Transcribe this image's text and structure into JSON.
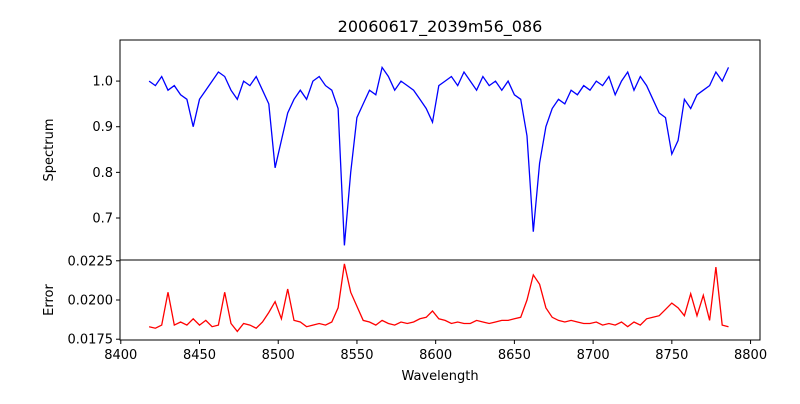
{
  "chart_data": [
    {
      "type": "line",
      "title": "20060617_2039m56_086",
      "xlabel": "",
      "ylabel": "Spectrum",
      "xlim": [
        8399.5,
        8806
      ],
      "ylim": [
        0.608,
        1.09
      ],
      "yticks": [
        0.7,
        0.8,
        0.9,
        1.0
      ],
      "ytick_labels": [
        "0.7",
        "0.8",
        "0.9",
        "1.0"
      ],
      "grid": false,
      "color": "#0000ff",
      "x": [
        8418,
        8422,
        8426,
        8430,
        8434,
        8438,
        8442,
        8446,
        8450,
        8454,
        8458,
        8462,
        8466,
        8470,
        8474,
        8478,
        8482,
        8486,
        8490,
        8494,
        8498,
        8502,
        8506,
        8510,
        8514,
        8518,
        8522,
        8526,
        8530,
        8534,
        8538,
        8542,
        8546,
        8550,
        8554,
        8558,
        8562,
        8566,
        8570,
        8574,
        8578,
        8582,
        8586,
        8590,
        8594,
        8598,
        8602,
        8606,
        8610,
        8614,
        8618,
        8622,
        8626,
        8630,
        8634,
        8638,
        8642,
        8646,
        8650,
        8654,
        8658,
        8662,
        8666,
        8670,
        8674,
        8678,
        8682,
        8686,
        8690,
        8694,
        8698,
        8702,
        8706,
        8710,
        8714,
        8718,
        8722,
        8726,
        8730,
        8734,
        8738,
        8742,
        8746,
        8750,
        8754,
        8758,
        8762,
        8766,
        8770,
        8774,
        8778,
        8782,
        8786
      ],
      "y": [
        1.0,
        0.99,
        1.01,
        0.98,
        0.99,
        0.97,
        0.96,
        0.9,
        0.96,
        0.98,
        1.0,
        1.02,
        1.01,
        0.98,
        0.96,
        1.0,
        0.99,
        1.01,
        0.98,
        0.95,
        0.81,
        0.87,
        0.93,
        0.96,
        0.98,
        0.96,
        1.0,
        1.01,
        0.99,
        0.98,
        0.94,
        0.64,
        0.8,
        0.92,
        0.95,
        0.98,
        0.97,
        1.03,
        1.01,
        0.98,
        1.0,
        0.99,
        0.98,
        0.96,
        0.94,
        0.91,
        0.99,
        1.0,
        1.01,
        0.99,
        1.02,
        1.0,
        0.98,
        1.01,
        0.99,
        1.0,
        0.98,
        1.0,
        0.97,
        0.96,
        0.88,
        0.67,
        0.82,
        0.9,
        0.94,
        0.96,
        0.95,
        0.98,
        0.97,
        0.99,
        0.98,
        1.0,
        0.99,
        1.01,
        0.97,
        1.0,
        1.02,
        0.98,
        1.01,
        0.99,
        0.96,
        0.93,
        0.92,
        0.84,
        0.87,
        0.96,
        0.94,
        0.97,
        0.98,
        0.99,
        1.02,
        1.0,
        1.03
      ]
    },
    {
      "type": "line",
      "title": "",
      "xlabel": "Wavelength",
      "ylabel": "Error",
      "xlim": [
        8399.5,
        8806
      ],
      "ylim": [
        0.01745,
        0.02255
      ],
      "xticks": [
        8400,
        8450,
        8500,
        8550,
        8600,
        8650,
        8700,
        8750,
        8800
      ],
      "xtick_labels": [
        "8400",
        "8450",
        "8500",
        "8550",
        "8600",
        "8650",
        "8700",
        "8750",
        "8800"
      ],
      "yticks": [
        0.0175,
        0.02,
        0.0225
      ],
      "ytick_labels": [
        "0.0175",
        "0.0200",
        "0.0225"
      ],
      "grid": false,
      "color": "#ff0000",
      "x": [
        8418,
        8422,
        8426,
        8430,
        8434,
        8438,
        8442,
        8446,
        8450,
        8454,
        8458,
        8462,
        8466,
        8470,
        8474,
        8478,
        8482,
        8486,
        8490,
        8494,
        8498,
        8502,
        8506,
        8510,
        8514,
        8518,
        8522,
        8526,
        8530,
        8534,
        8538,
        8542,
        8546,
        8550,
        8554,
        8558,
        8562,
        8566,
        8570,
        8574,
        8578,
        8582,
        8586,
        8590,
        8594,
        8598,
        8602,
        8606,
        8610,
        8614,
        8618,
        8622,
        8626,
        8630,
        8634,
        8638,
        8642,
        8646,
        8650,
        8654,
        8658,
        8662,
        8666,
        8670,
        8674,
        8678,
        8682,
        8686,
        8690,
        8694,
        8698,
        8702,
        8706,
        8710,
        8714,
        8718,
        8722,
        8726,
        8730,
        8734,
        8738,
        8742,
        8746,
        8750,
        8754,
        8758,
        8762,
        8766,
        8770,
        8774,
        8778,
        8782,
        8786
      ],
      "y": [
        0.0183,
        0.0182,
        0.0184,
        0.0205,
        0.0184,
        0.0186,
        0.0184,
        0.0188,
        0.0184,
        0.0187,
        0.0183,
        0.0184,
        0.0205,
        0.0185,
        0.018,
        0.0185,
        0.0184,
        0.0182,
        0.0186,
        0.0192,
        0.0199,
        0.0188,
        0.0207,
        0.0187,
        0.0186,
        0.0183,
        0.0184,
        0.0185,
        0.0184,
        0.0186,
        0.0195,
        0.0223,
        0.0205,
        0.0196,
        0.0187,
        0.0186,
        0.0184,
        0.0187,
        0.0185,
        0.0184,
        0.0186,
        0.0185,
        0.0186,
        0.0188,
        0.0189,
        0.0193,
        0.0188,
        0.0187,
        0.0185,
        0.0186,
        0.0185,
        0.0185,
        0.0187,
        0.0186,
        0.0185,
        0.0186,
        0.0187,
        0.0187,
        0.0188,
        0.0189,
        0.02,
        0.0216,
        0.021,
        0.0195,
        0.0189,
        0.0187,
        0.0186,
        0.0187,
        0.0186,
        0.0185,
        0.0185,
        0.0186,
        0.0184,
        0.0185,
        0.0184,
        0.0186,
        0.0183,
        0.0186,
        0.0184,
        0.0188,
        0.0189,
        0.019,
        0.0194,
        0.0198,
        0.0195,
        0.019,
        0.0204,
        0.019,
        0.0203,
        0.0187,
        0.0221,
        0.0184,
        0.0183
      ]
    }
  ]
}
